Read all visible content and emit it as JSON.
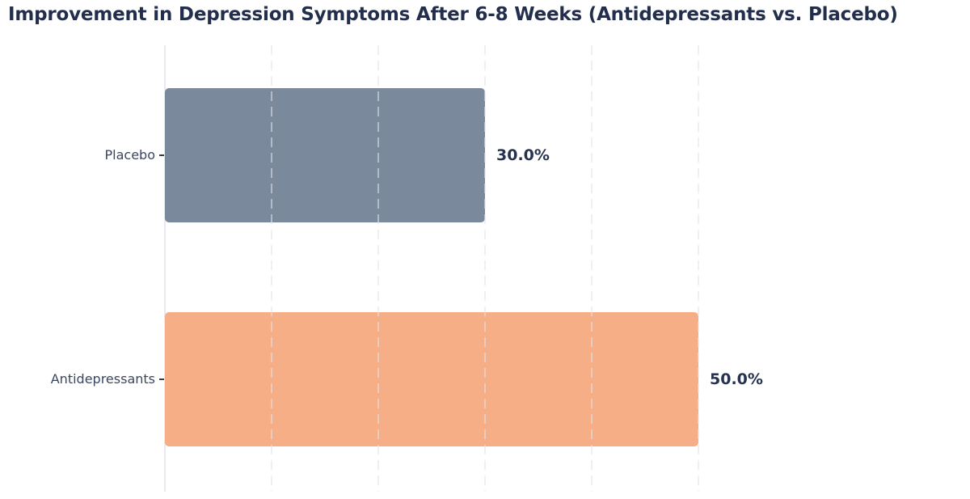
{
  "title": "Improvement in Depression Symptoms After 6-8 Weeks (Antidepressants vs. Placebo)",
  "chart_data": {
    "type": "bar",
    "orientation": "horizontal",
    "title": "Improvement in Depression Symptoms After 6-8 Weeks (Antidepressants vs. Placebo)",
    "categories": [
      "Placebo",
      "Antidepressants"
    ],
    "values": [
      30.0,
      50.0
    ],
    "value_labels": [
      "30.0%",
      "50.0%"
    ],
    "bar_colors": [
      "#7B899D",
      "#F6AE86"
    ],
    "xlabel": "",
    "ylabel": "",
    "xlim": [
      0,
      50
    ],
    "gridline_values": [
      10,
      20,
      30,
      40,
      50
    ],
    "grid_style": "dashed-vertical",
    "legend": "none",
    "background_color": "#ffffff",
    "title_color": "#222e4c",
    "category_label_color": "#3a4660",
    "value_label_color": "#26334f",
    "axis_line_color": "#e9e9f0"
  }
}
